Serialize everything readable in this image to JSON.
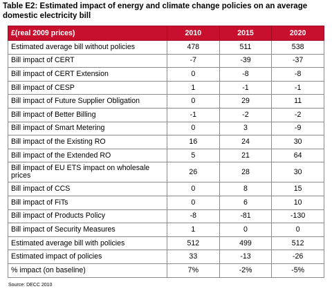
{
  "title": "Table E2: Estimated impact of energy and climate change policies on an average domestic electricity bill",
  "header": [
    "£(real 2009 prices)",
    "2010",
    "2015",
    "2020"
  ],
  "rows": [
    [
      "Estimated average bill without policies",
      "478",
      "511",
      "538"
    ],
    [
      "Bill impact of CERT",
      "-7",
      "-39",
      "-37"
    ],
    [
      "Bill impact of CERT Extension",
      "0",
      "-8",
      "-8"
    ],
    [
      "Bill impact of CESP",
      "1",
      "-1",
      "-1"
    ],
    [
      "Bill impact of Future Supplier Obligation",
      "0",
      "29",
      "11"
    ],
    [
      "Bill impact of Better Billing",
      "-1",
      "-2",
      "-2"
    ],
    [
      "Bill impact of Smart Metering",
      "0",
      "3",
      "-9"
    ],
    [
      "Bill impact of the Existing RO",
      "16",
      "24",
      "30"
    ],
    [
      "Bill impact of the Extended RO",
      "5",
      "21",
      "64"
    ],
    [
      "Bill impact of EU ETS impact on wholesale prices",
      "26",
      "28",
      "30"
    ],
    [
      "Bill impact of CCS",
      "0",
      "8",
      "15"
    ],
    [
      "Bill impact of FiTs",
      "0",
      "6",
      "10"
    ],
    [
      "Bill impact of Products Policy",
      "-8",
      "-81",
      "-130"
    ],
    [
      "Bill impact of Security Measures",
      "1",
      "0",
      "0"
    ],
    [
      "Estimated average bill with policies",
      "512",
      "499",
      "512"
    ],
    [
      "Estimated impact of policies",
      "33",
      "-13",
      "-26"
    ],
    [
      "% impact (on baseline)",
      "7%",
      "-2%",
      "-5%"
    ]
  ],
  "source": "Source: DECC 2010",
  "colors": {
    "header_bg": "#c8102e",
    "header_text": "#ffffff",
    "border": "#8a8a8a"
  }
}
